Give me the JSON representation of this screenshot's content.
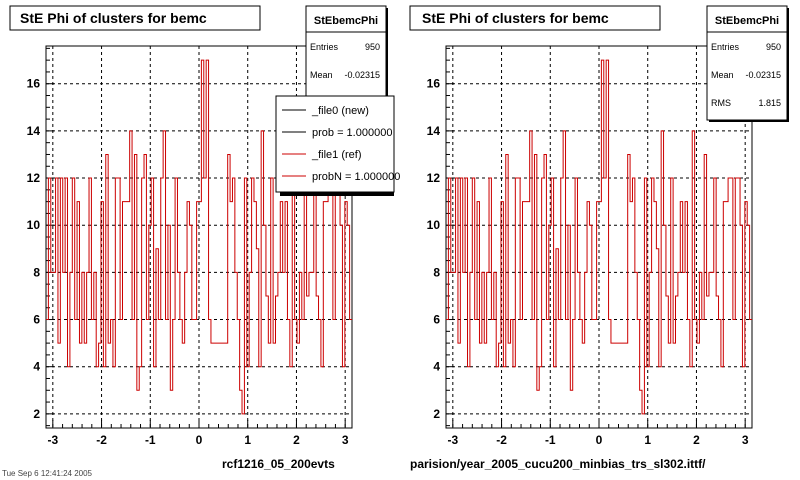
{
  "colors": {
    "data": "#cc0000",
    "new": "#000000",
    "ref": "#cc0000",
    "frame": "#000000"
  },
  "footer": {
    "left_label": "rcf1216_05_200evts",
    "right_label": "parision/year_2005_cucu200_minbias_trs_sl302.ittf/",
    "timestamp": "Tue Sep 6 12:41:24 2005"
  },
  "legend": {
    "entries": [
      {
        "label": "_file0 (new)",
        "color": "#000000"
      },
      {
        "label": "prob = 1.000000",
        "color": "#000000"
      },
      {
        "label": "_file1 (ref)",
        "color": "#cc0000"
      },
      {
        "label": "probN = 1.000000",
        "color": "#cc0000"
      }
    ]
  },
  "chart_data": [
    {
      "type": "line",
      "title": "StE Phi of clusters for bemc",
      "stats": {
        "name": "StEbemcPhi",
        "entries": "950",
        "mean": "-0.02315",
        "rms": "1.815"
      },
      "xlim": [
        -3.14,
        3.14
      ],
      "ylim": [
        1.4,
        17.6
      ],
      "xticks": [
        -3,
        -2,
        -1,
        0,
        1,
        2,
        3
      ],
      "yticks": [
        2,
        4,
        6,
        8,
        10,
        12,
        14,
        16
      ],
      "grid": true,
      "series": [
        {
          "values": [
            6,
            12,
            8,
            8,
            12,
            5,
            12,
            8,
            12,
            4,
            8,
            12,
            6,
            11,
            5,
            8,
            5,
            8,
            12,
            6,
            8,
            4,
            5,
            11,
            4,
            13,
            5,
            6,
            4,
            12,
            12,
            6,
            11,
            11,
            11,
            14,
            6,
            13,
            3,
            4,
            12,
            13,
            6,
            10,
            12,
            4,
            9,
            6,
            12,
            14,
            6,
            10,
            3,
            6,
            12,
            8,
            6,
            5,
            8,
            11,
            10,
            6,
            6,
            11,
            11,
            17,
            12,
            17,
            6,
            5,
            5,
            5,
            5,
            5,
            5,
            5,
            13,
            11,
            12,
            8,
            6,
            3,
            2,
            12,
            4,
            8,
            12,
            11,
            9,
            4,
            14,
            10,
            7,
            5,
            12,
            5,
            7,
            8,
            11,
            8,
            11,
            6,
            4,
            14,
            6,
            5,
            8,
            6,
            13,
            7,
            8,
            8,
            12,
            7,
            6,
            4,
            11,
            11,
            12,
            12,
            6,
            12,
            12,
            10,
            4,
            11,
            10,
            6
          ]
        }
      ]
    },
    {
      "type": "line",
      "title": "StE Phi of clusters for bemc",
      "stats": {
        "name": "StEbemcPhi",
        "entries": "950",
        "mean": "-0.02315",
        "rms": "1.815"
      },
      "xlim": [
        -3.14,
        3.14
      ],
      "ylim": [
        1.4,
        17.6
      ],
      "xticks": [
        -3,
        -2,
        -1,
        0,
        1,
        2,
        3
      ],
      "yticks": [
        2,
        4,
        6,
        8,
        10,
        12,
        14,
        16
      ],
      "grid": true,
      "series": [
        {
          "values": [
            6,
            12,
            8,
            8,
            12,
            5,
            12,
            8,
            12,
            4,
            8,
            12,
            6,
            11,
            5,
            8,
            5,
            8,
            12,
            6,
            8,
            4,
            5,
            11,
            4,
            13,
            5,
            6,
            4,
            12,
            12,
            6,
            11,
            11,
            11,
            14,
            6,
            13,
            3,
            4,
            12,
            13,
            6,
            10,
            12,
            4,
            9,
            6,
            12,
            14,
            6,
            10,
            3,
            6,
            12,
            8,
            6,
            5,
            8,
            11,
            10,
            6,
            6,
            11,
            11,
            17,
            12,
            17,
            6,
            5,
            5,
            5,
            5,
            5,
            5,
            5,
            13,
            11,
            12,
            8,
            6,
            3,
            2,
            12,
            4,
            8,
            12,
            11,
            9,
            4,
            14,
            10,
            7,
            5,
            12,
            5,
            7,
            8,
            11,
            8,
            11,
            6,
            4,
            14,
            6,
            5,
            8,
            6,
            13,
            7,
            8,
            8,
            12,
            7,
            6,
            4,
            11,
            11,
            12,
            12,
            6,
            12,
            12,
            10,
            4,
            11,
            10,
            6
          ]
        }
      ]
    }
  ]
}
